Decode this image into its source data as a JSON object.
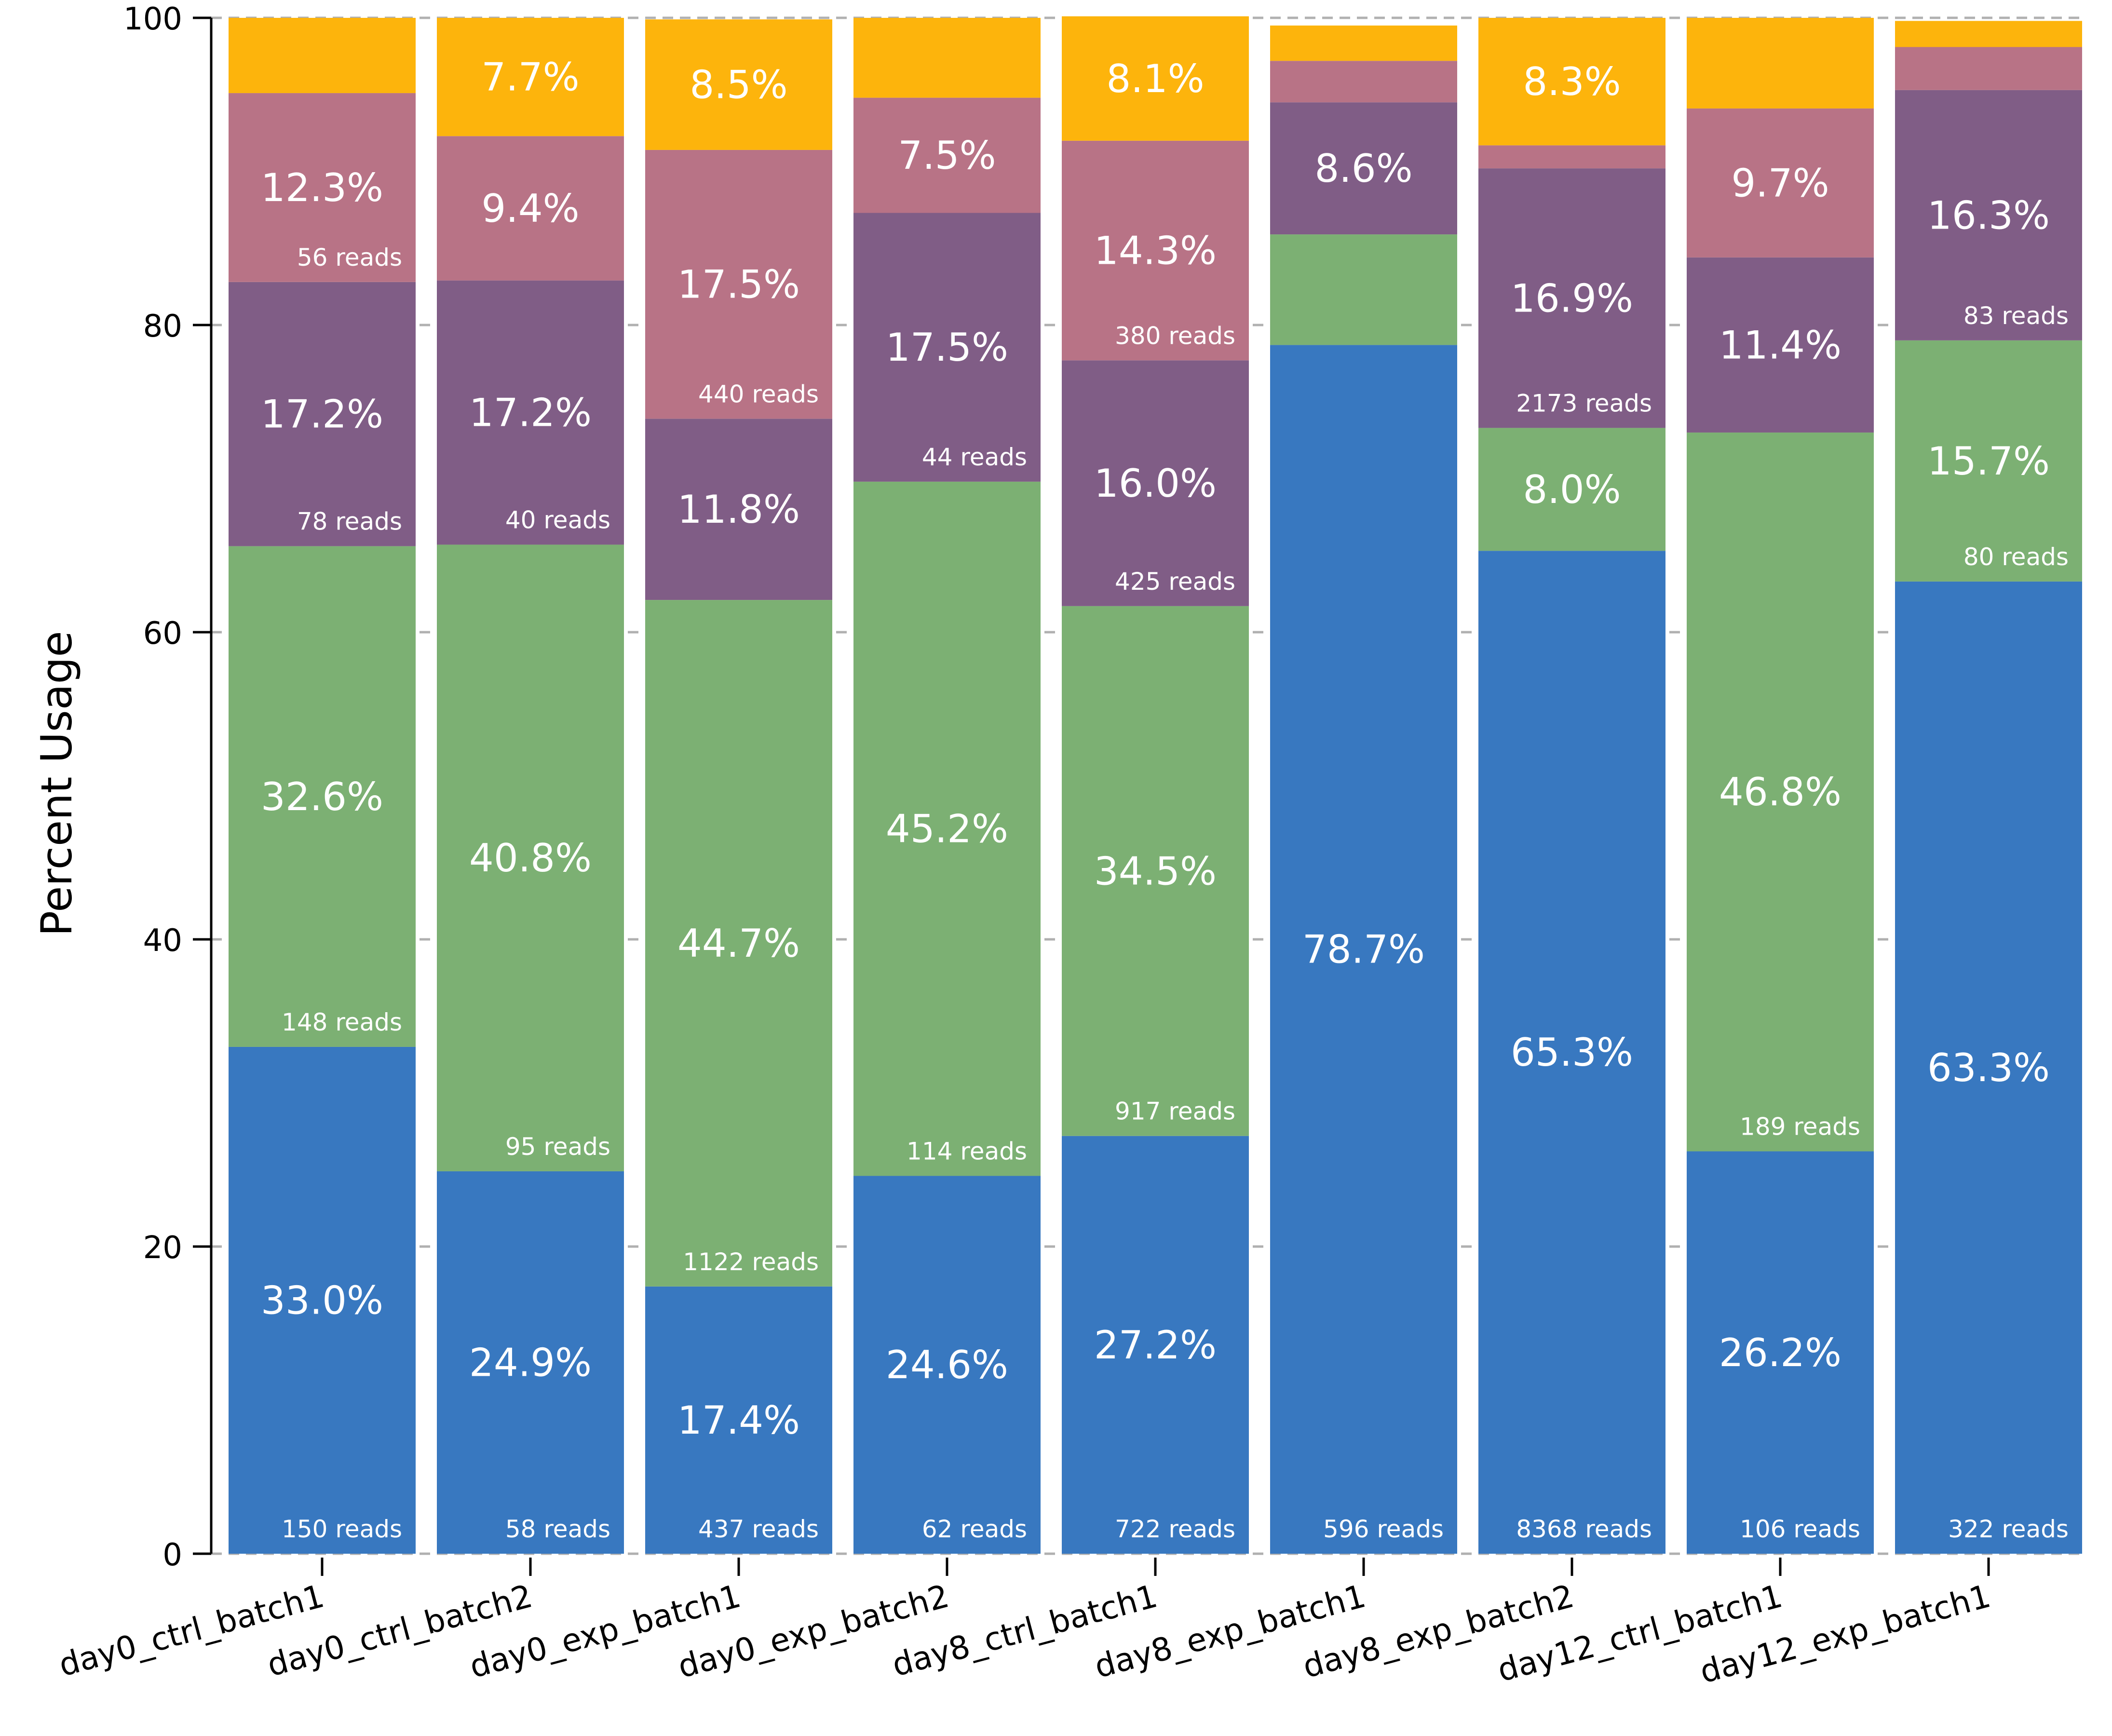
{
  "chart_data": {
    "type": "bar",
    "stacked": true,
    "ylabel": "Percent Usage",
    "xlabel": "",
    "ylim": [
      0,
      100
    ],
    "yticks": [
      0,
      20,
      40,
      60,
      80,
      100
    ],
    "grid": "horizontal dashed",
    "categories": [
      "day0_ctrl_batch1",
      "day0_ctrl_batch2",
      "day0_exp_batch1",
      "day0_exp_batch2",
      "day8_ctrl_batch1",
      "day8_exp_batch1",
      "day8_exp_batch2",
      "day12_ctrl_batch1",
      "day12_exp_batch1"
    ],
    "series": [
      {
        "color": "#3878c0",
        "values": [
          33.0,
          24.9,
          17.4,
          24.6,
          27.2,
          78.7,
          65.3,
          26.2,
          63.3
        ],
        "pct_labels": [
          "33.0%",
          "24.9%",
          "17.4%",
          "24.6%",
          "27.2%",
          "78.7%",
          "65.3%",
          "26.2%",
          "63.3%"
        ],
        "read_labels": [
          "150 reads",
          "58 reads",
          "437 reads",
          "62 reads",
          "722 reads",
          "596 reads",
          "8368 reads",
          "106 reads",
          "322 reads"
        ]
      },
      {
        "color": "#7cb073",
        "values": [
          32.6,
          40.8,
          44.7,
          45.2,
          34.5,
          7.2,
          8.0,
          46.8,
          15.7
        ],
        "pct_labels": [
          "32.6%",
          "40.8%",
          "44.7%",
          "45.2%",
          "34.5%",
          "",
          "8.0%",
          "46.8%",
          "15.7%"
        ],
        "read_labels": [
          "148 reads",
          "95 reads",
          "1122 reads",
          "114 reads",
          "917 reads",
          "",
          "",
          "189 reads",
          "80 reads"
        ]
      },
      {
        "color": "#805d86",
        "values": [
          17.2,
          17.2,
          11.8,
          17.5,
          16.0,
          8.6,
          16.9,
          11.4,
          16.3
        ],
        "pct_labels": [
          "17.2%",
          "17.2%",
          "11.8%",
          "17.5%",
          "16.0%",
          "8.6%",
          "16.9%",
          "11.4%",
          "16.3%"
        ],
        "read_labels": [
          "78 reads",
          "40 reads",
          "",
          "44 reads",
          "425 reads",
          "",
          "2173 reads",
          "",
          "83 reads"
        ]
      },
      {
        "color": "#b87386",
        "values": [
          12.3,
          9.4,
          17.5,
          7.5,
          14.3,
          2.7,
          1.5,
          9.7,
          2.8
        ],
        "pct_labels": [
          "12.3%",
          "9.4%",
          "17.5%",
          "7.5%",
          "14.3%",
          "",
          "",
          "9.7%",
          ""
        ],
        "read_labels": [
          "56 reads",
          "",
          "440 reads",
          "",
          "380 reads",
          "",
          "",
          "",
          ""
        ]
      },
      {
        "color": "#fdb40c",
        "values": [
          4.9,
          7.7,
          8.5,
          5.2,
          8.1,
          2.3,
          8.3,
          5.9,
          1.7
        ],
        "pct_labels": [
          "",
          "7.7%",
          "8.5%",
          "",
          "8.1%",
          "",
          "8.3%",
          "",
          ""
        ],
        "read_labels": [
          "",
          "",
          "",
          "",
          "",
          "",
          "",
          "",
          ""
        ]
      }
    ]
  }
}
